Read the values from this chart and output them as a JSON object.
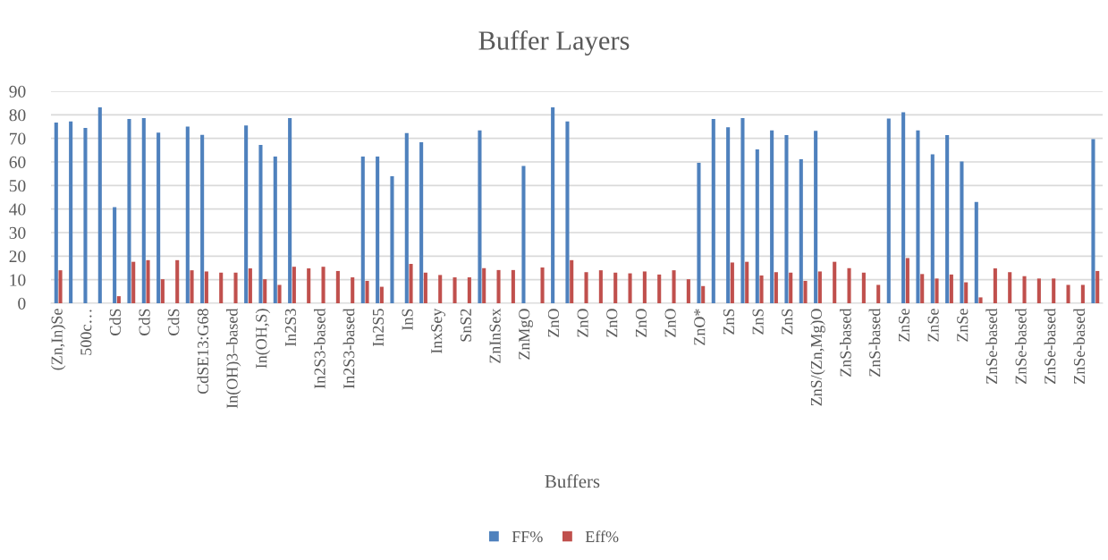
{
  "chart_data": {
    "type": "bar",
    "title": "Buffer Layers",
    "xlabel": "Buffers",
    "categories": [
      "(Zn,In)Se",
      null,
      "500c…",
      null,
      "CdS",
      null,
      "CdS",
      null,
      "CdS",
      null,
      "CdSE13:G68",
      null,
      "In(OH)3–based",
      null,
      "In(OH,S)",
      null,
      "In2S3",
      null,
      "In2S3-based",
      null,
      "In2S3-based",
      null,
      "In2S5",
      null,
      "InS",
      null,
      "InxSey",
      null,
      "SnS2",
      null,
      "ZnInSex",
      null,
      "ZnMgO",
      null,
      "ZnO",
      null,
      "ZnO",
      null,
      "ZnO",
      null,
      "ZnO",
      null,
      "ZnO",
      null,
      "ZnO*",
      null,
      "ZnS",
      null,
      "ZnS",
      null,
      "ZnS",
      null,
      "ZnS/(Zn,Mg)O",
      null,
      "ZnS-based",
      null,
      "ZnS-based",
      null,
      "ZnSe",
      null,
      "ZnSe",
      null,
      "ZnSe",
      null,
      "ZnSe-based",
      null,
      "ZnSe-based",
      null,
      "ZnSe-based",
      null,
      "ZnSe-based",
      null
    ],
    "series": [
      {
        "name": "FF%",
        "color": "#4f81bd",
        "values": [
          76.7,
          77.2,
          74.4,
          83.2,
          40.8,
          78.2,
          78.6,
          72.4,
          null,
          75.0,
          71.5,
          null,
          null,
          75.5,
          67.2,
          62.3,
          78.6,
          null,
          null,
          null,
          null,
          62.3,
          62.3,
          53.9,
          72.2,
          68.4,
          null,
          null,
          null,
          73.4,
          null,
          null,
          58.3,
          null,
          83.2,
          77.2,
          null,
          null,
          null,
          null,
          null,
          null,
          null,
          null,
          59.6,
          78.2,
          74.7,
          78.6,
          65.3,
          73.4,
          71.4,
          61.1,
          73.2,
          null,
          null,
          null,
          null,
          78.4,
          81.1,
          73.4,
          63.2,
          71.4,
          60.2,
          43.0,
          null,
          null,
          null,
          null,
          null,
          null,
          null,
          69.7
        ]
      },
      {
        "name": "Eff%",
        "color": "#c0504d",
        "values": [
          14.0,
          null,
          null,
          null,
          3.0,
          17.6,
          18.3,
          10.2,
          18.3,
          14.0,
          13.5,
          13.0,
          13.0,
          14.8,
          10.2,
          7.8,
          15.5,
          14.8,
          15.5,
          13.7,
          11.0,
          9.5,
          7.0,
          null,
          16.7,
          13.0,
          12.0,
          11.0,
          11.0,
          14.9,
          14.1,
          14.1,
          null,
          15.2,
          null,
          18.3,
          13.2,
          14.0,
          13.0,
          12.7,
          13.5,
          12.2,
          14.0,
          10.2,
          7.3,
          null,
          17.3,
          17.6,
          11.8,
          13.2,
          13.0,
          9.5,
          13.5,
          17.6,
          14.9,
          13.0,
          7.8,
          null,
          19.2,
          12.4,
          10.5,
          12.2,
          8.9,
          2.5,
          14.8,
          13.2,
          11.5,
          10.5,
          10.5,
          7.8,
          7.8,
          13.7
        ]
      }
    ],
    "ylim": [
      0,
      90
    ],
    "yticks": [
      0,
      10,
      20,
      30,
      40,
      50,
      60,
      70,
      80,
      90
    ],
    "grid": "y",
    "legend": "bottom"
  }
}
